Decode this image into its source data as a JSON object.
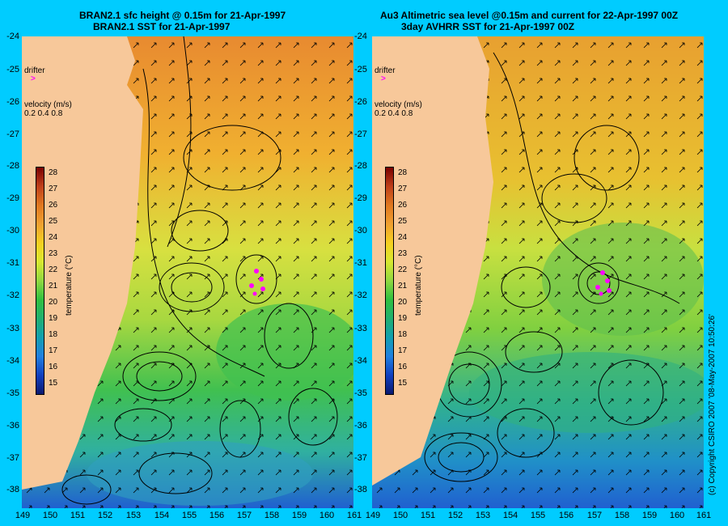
{
  "left_panel": {
    "title_line1": "BRAN2.1 sfc height @ 0.15m for 21-Apr-1997",
    "title_line2": "BRAN2.1 SST for 21-Apr-1997",
    "drifter_label": "drifter",
    "velocity_label": "velocity (m/s)",
    "velocity_scale": "0.2 0.4 0.8",
    "colorbar_label": "temperature (°C)"
  },
  "right_panel": {
    "title_line1": "Au3 Altimetric sea level  @0.15m and current for 22-Apr-1997 00Z",
    "title_line2": "3day AVHRR SST for 21-Apr-1997 00Z",
    "drifter_label": "drifter",
    "velocity_label": "velocity (m/s)",
    "velocity_scale": "0.2 0.4 0.8",
    "colorbar_label": "temperature (°C)"
  },
  "y_ticks": [
    "-24",
    "-25",
    "-26",
    "-27",
    "-28",
    "-29",
    "-30",
    "-31",
    "-32",
    "-33",
    "-34",
    "-35",
    "-36",
    "-37",
    "-38"
  ],
  "x_ticks_left": [
    "149",
    "150",
    "151",
    "152",
    "153",
    "154",
    "155",
    "156",
    "157",
    "158",
    "159",
    "160",
    "161"
  ],
  "x_ticks_right": [
    "149",
    "150",
    "151",
    "152",
    "153",
    "154",
    "155",
    "156",
    "157",
    "158",
    "159",
    "160",
    "161"
  ],
  "colorbar_ticks": [
    "28",
    "27",
    "26",
    "25",
    "24",
    "23",
    "22",
    "21",
    "20",
    "19",
    "18",
    "17",
    "16",
    "15"
  ],
  "copyright": "(c) Copyright CSIRO 2007  '08-May-2007 10:50:26'",
  "colors": {
    "background": "#00ccff",
    "land": "#f7c89a",
    "drifter": "#ff00ff"
  }
}
